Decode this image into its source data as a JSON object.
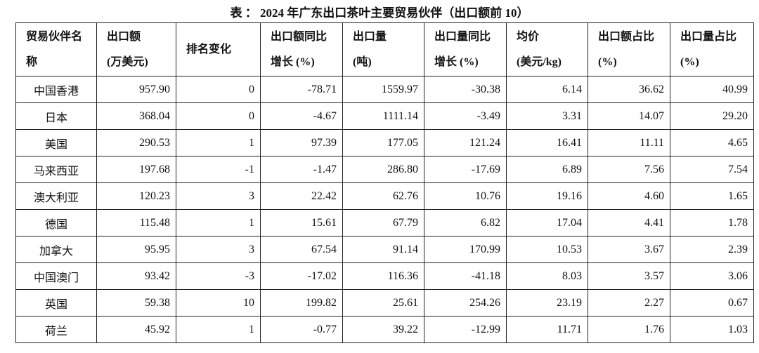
{
  "header": {
    "title": "表 ： 2024 年广东出口茶叶主要贸易伙伴（出口额前 10）"
  },
  "table": {
    "columns": [
      [
        "贸易伙伴名",
        "称"
      ],
      [
        "出口额",
        "(万美元)"
      ],
      [
        "排名变化"
      ],
      [
        "出口额同比",
        "增长 (%)"
      ],
      [
        "出口量",
        "(吨)"
      ],
      [
        "出口量同比",
        "增长 (%)"
      ],
      [
        "均价",
        "(美元/kg)"
      ],
      [
        "出口额占比",
        "(%)"
      ],
      [
        "出口量占比",
        "(%)"
      ]
    ],
    "rows": [
      [
        "中国香港",
        "957.90",
        "0",
        "-78.71",
        "1559.97",
        "-30.38",
        "6.14",
        "36.62",
        "40.99"
      ],
      [
        "日本",
        "368.04",
        "0",
        "-4.67",
        "1111.14",
        "-3.49",
        "3.31",
        "14.07",
        "29.20"
      ],
      [
        "美国",
        "290.53",
        "1",
        "97.39",
        "177.05",
        "121.24",
        "16.41",
        "11.11",
        "4.65"
      ],
      [
        "马来西亚",
        "197.68",
        "-1",
        "-1.47",
        "286.80",
        "-17.69",
        "6.89",
        "7.56",
        "7.54"
      ],
      [
        "澳大利亚",
        "120.23",
        "3",
        "22.42",
        "62.76",
        "10.76",
        "19.16",
        "4.60",
        "1.65"
      ],
      [
        "德国",
        "115.48",
        "1",
        "15.61",
        "67.79",
        "6.82",
        "17.04",
        "4.41",
        "1.78"
      ],
      [
        "加拿大",
        "95.95",
        "3",
        "67.54",
        "91.14",
        "170.99",
        "10.53",
        "3.67",
        "2.39"
      ],
      [
        "中国澳门",
        "93.42",
        "-3",
        "-17.02",
        "116.36",
        "-41.18",
        "8.03",
        "3.57",
        "3.06"
      ],
      [
        "英国",
        "59.38",
        "10",
        "199.82",
        "25.61",
        "254.26",
        "23.19",
        "2.27",
        "0.67"
      ],
      [
        "荷兰",
        "45.92",
        "1",
        "-0.77",
        "39.22",
        "-12.99",
        "11.71",
        "1.76",
        "1.03"
      ]
    ]
  }
}
